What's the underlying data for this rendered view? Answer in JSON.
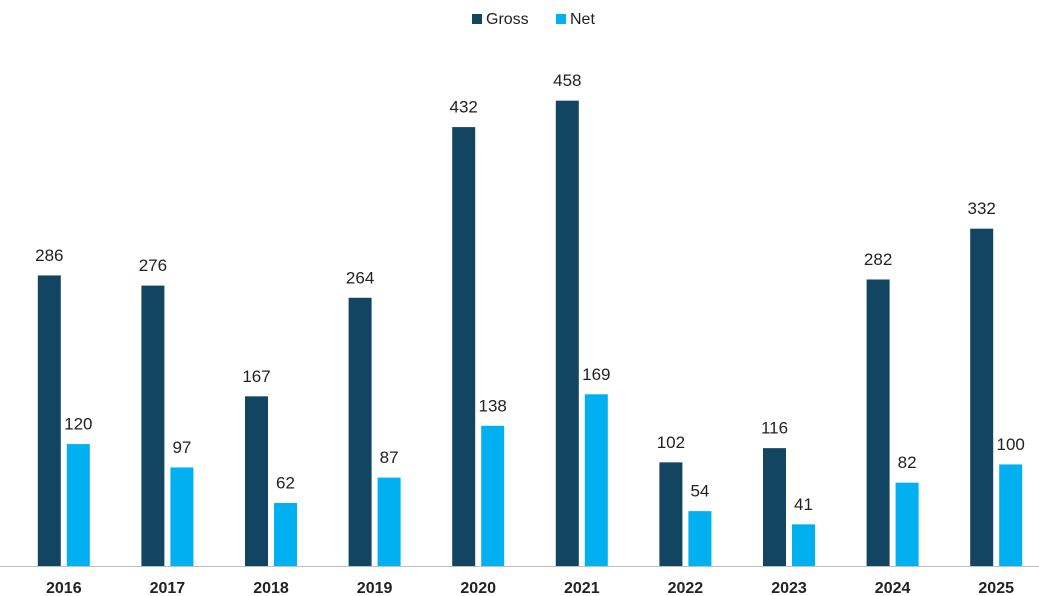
{
  "chart_data": {
    "type": "bar",
    "categories": [
      "2016",
      "2017",
      "2018",
      "2019",
      "2020",
      "2021",
      "2022",
      "2023",
      "2024",
      "2025"
    ],
    "series": [
      {
        "name": "Gross",
        "color": "#124562",
        "values": [
          286,
          276,
          167,
          264,
          432,
          458,
          102,
          116,
          282,
          332
        ]
      },
      {
        "name": "Net",
        "color": "#00b0f0",
        "values": [
          120,
          97,
          62,
          87,
          138,
          169,
          54,
          41,
          82,
          100
        ]
      }
    ],
    "ylim": [
      0,
      500
    ],
    "grid": false,
    "legend": "top"
  }
}
